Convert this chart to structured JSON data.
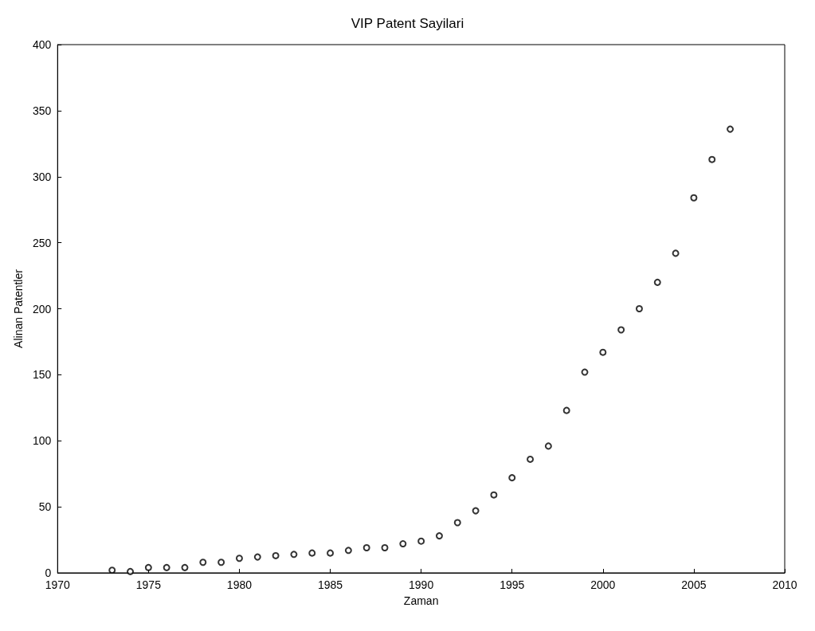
{
  "chart_data": {
    "type": "scatter",
    "title": "VIP Patent Sayilari",
    "xlabel": "Zaman",
    "ylabel": "Alinan Patentler",
    "x": [
      1973,
      1974,
      1975,
      1976,
      1977,
      1978,
      1979,
      1980,
      1981,
      1982,
      1983,
      1984,
      1985,
      1986,
      1987,
      1988,
      1989,
      1990,
      1991,
      1992,
      1993,
      1994,
      1995,
      1996,
      1997,
      1998,
      1999,
      2000,
      2001,
      2002,
      2003,
      2004,
      2005,
      2006,
      2007
    ],
    "series": [
      {
        "color": "#000000",
        "values": [
          2,
          1,
          4,
          4,
          4,
          8,
          8,
          11,
          12,
          13,
          14,
          15,
          15,
          17,
          19,
          19,
          22,
          24,
          28,
          38,
          47,
          59,
          72,
          86,
          96,
          123,
          152,
          167,
          184,
          200,
          220,
          242,
          284,
          313,
          336
        ]
      }
    ],
    "xlim": [
      1970,
      2010
    ],
    "xticks": [
      1970,
      1975,
      1980,
      1985,
      1990,
      1995,
      2000,
      2005,
      2010
    ],
    "ylim": [
      0,
      400
    ],
    "yticks": [
      0,
      50,
      100,
      150,
      200,
      250,
      300,
      350,
      400
    ],
    "grid": false,
    "marker": "circle"
  }
}
